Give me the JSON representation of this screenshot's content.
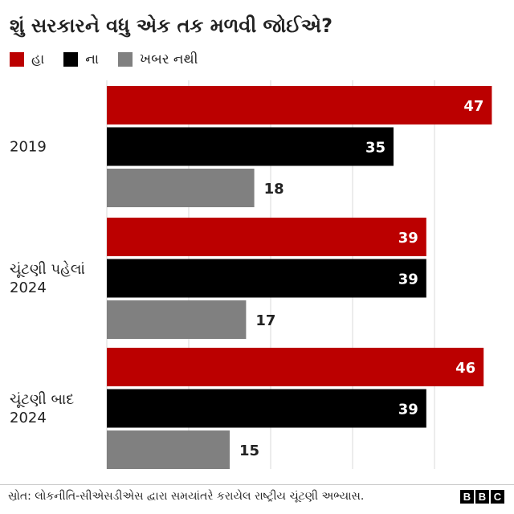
{
  "title": "શું સરકારને વધુ એક તક મળવી જોઈએ?",
  "colors": {
    "ha": "#bb0000",
    "na": "#000000",
    "khabar_nathi": "#808080",
    "grid": "#d9d9d9"
  },
  "chart_data": {
    "type": "bar",
    "orientation": "horizontal",
    "categories": [
      [
        "2019"
      ],
      [
        "ચૂંટણી પહેલાં",
        "2024"
      ],
      [
        "ચૂંટણી બાદ",
        "2024"
      ]
    ],
    "series": [
      {
        "name": "હા",
        "values": [
          47,
          39,
          46
        ],
        "color": "#bb0000"
      },
      {
        "name": "ના",
        "values": [
          35,
          39,
          39
        ],
        "color": "#000000"
      },
      {
        "name": "ખબર નથી",
        "values": [
          18,
          17,
          15
        ],
        "color": "#808080"
      }
    ],
    "xlim": [
      0,
      50
    ],
    "grid": true,
    "legend": "top-left"
  },
  "legend": [
    {
      "label": "હા",
      "color": "#bb0000"
    },
    {
      "label": "ના",
      "color": "#000000"
    },
    {
      "label": "ખબર નથી",
      "color": "#808080"
    }
  ],
  "source": "સ્રોત: લોકનીતિ-સીએસડીએસ દ્વારા સમયાંતરે કરાયેલ રાષ્ટ્રીય ચૂંટણી અભ્યાસ.",
  "brand": [
    "B",
    "B",
    "C"
  ]
}
